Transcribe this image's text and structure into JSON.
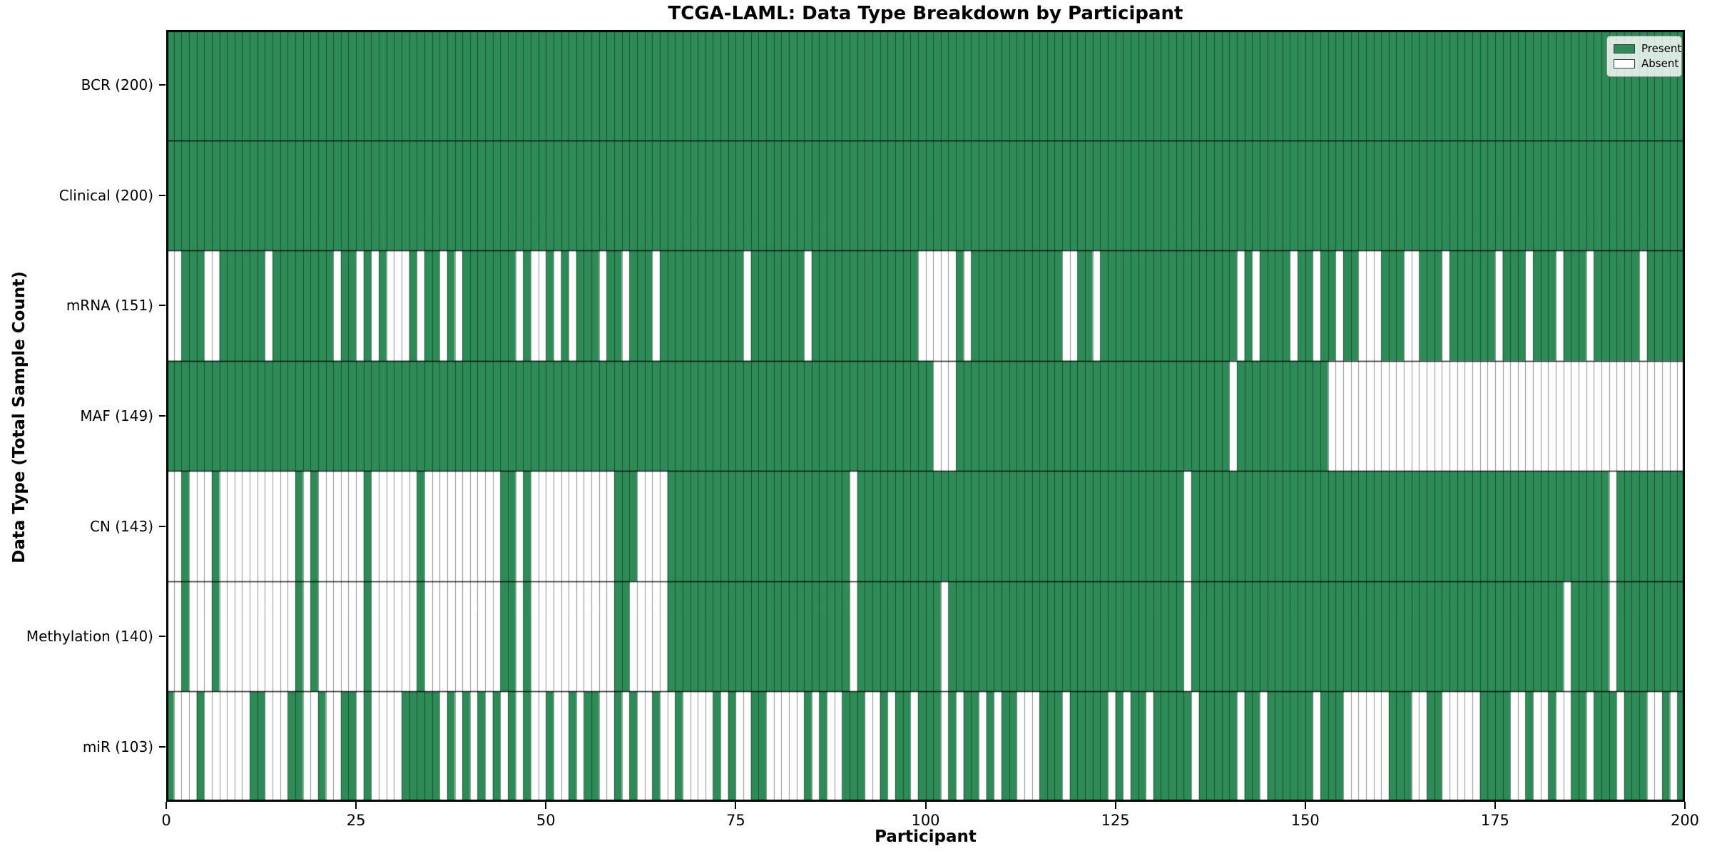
{
  "title": "TCGA-LAML: Data Type Breakdown by Participant",
  "axes": {
    "xlabel": "Participant",
    "ylabel": "Data Type (Total Sample Count)"
  },
  "legend": {
    "position": "upper right",
    "items": [
      {
        "label": "Present",
        "color": "#2e8b57"
      },
      {
        "label": "Absent",
        "color": "#ffffff"
      }
    ]
  },
  "chart_data": {
    "type": "heatmap",
    "title": "TCGA-LAML: Data Type Breakdown by Participant",
    "xlabel": "Participant",
    "ylabel": "Data Type (Total Sample Count)",
    "x_ticks": [
      0,
      25,
      50,
      75,
      100,
      125,
      150,
      175,
      200
    ],
    "xlim": [
      0,
      200
    ],
    "n_participants": 200,
    "present_color": "#2e8b57",
    "absent_color": "#ffffff",
    "grid_color": "rgba(0,0,0,0.42)",
    "row_sep_color": "rgba(0,0,0,0.85)",
    "frame_color": "#000000",
    "legend_position": "upper right",
    "rows": [
      {
        "name": "BCR",
        "label": "BCR (200)",
        "present_count": 200,
        "absent": []
      },
      {
        "name": "Clinical",
        "label": "Clinical (200)",
        "present_count": 200,
        "absent": []
      },
      {
        "name": "mRNA",
        "label": "mRNA (151)",
        "present_count": 151,
        "absent": [
          0,
          1,
          5,
          6,
          13,
          22,
          25,
          27,
          29,
          30,
          31,
          33,
          36,
          38,
          46,
          48,
          49,
          51,
          53,
          57,
          60,
          64,
          76,
          84,
          99,
          100,
          101,
          102,
          103,
          105,
          118,
          119,
          122,
          141,
          143,
          148,
          151,
          154,
          157,
          158,
          159,
          163,
          164,
          168,
          175,
          179,
          183,
          187,
          194
        ]
      },
      {
        "name": "MAF",
        "label": "MAF (149)",
        "present_count": 149,
        "absent": [
          101,
          102,
          103,
          140,
          153,
          154,
          155,
          156,
          157,
          158,
          159,
          160,
          161,
          162,
          163,
          164,
          165,
          166,
          167,
          168,
          169,
          170,
          171,
          172,
          173,
          174,
          175,
          176,
          177,
          178,
          179,
          180,
          181,
          182,
          183,
          184,
          185,
          186,
          187,
          188,
          189,
          190,
          191,
          192,
          193,
          194,
          195,
          196,
          197,
          198,
          199
        ]
      },
      {
        "name": "CN",
        "label": "CN (143)",
        "present_count": 143,
        "absent": [
          0,
          1,
          3,
          4,
          5,
          7,
          8,
          9,
          10,
          11,
          12,
          13,
          14,
          15,
          16,
          18,
          20,
          21,
          22,
          23,
          24,
          25,
          27,
          28,
          29,
          30,
          31,
          32,
          34,
          35,
          36,
          37,
          38,
          39,
          40,
          41,
          42,
          43,
          46,
          48,
          49,
          50,
          51,
          52,
          53,
          54,
          55,
          56,
          57,
          58,
          62,
          63,
          64,
          65,
          90,
          134,
          190
        ]
      },
      {
        "name": "Methylation",
        "label": "Methylation (140)",
        "present_count": 140,
        "absent": [
          0,
          1,
          3,
          4,
          5,
          7,
          8,
          9,
          10,
          11,
          12,
          13,
          14,
          15,
          16,
          18,
          20,
          21,
          22,
          23,
          24,
          25,
          27,
          28,
          29,
          30,
          31,
          32,
          34,
          35,
          36,
          37,
          38,
          39,
          40,
          41,
          42,
          43,
          46,
          48,
          49,
          50,
          51,
          52,
          53,
          54,
          55,
          56,
          57,
          58,
          61,
          62,
          63,
          64,
          65,
          90,
          102,
          134,
          184,
          190
        ]
      },
      {
        "name": "miR",
        "label": "miR (103)",
        "present_count": 103,
        "absent": [
          1,
          2,
          3,
          5,
          6,
          7,
          8,
          9,
          10,
          13,
          14,
          15,
          18,
          19,
          21,
          22,
          25,
          27,
          28,
          29,
          30,
          36,
          38,
          40,
          42,
          44,
          46,
          48,
          49,
          51,
          52,
          54,
          57,
          58,
          60,
          62,
          63,
          65,
          66,
          68,
          69,
          70,
          71,
          73,
          75,
          76,
          79,
          80,
          81,
          82,
          83,
          85,
          87,
          88,
          92,
          93,
          95,
          98,
          102,
          104,
          107,
          109,
          112,
          113,
          114,
          118,
          124,
          126,
          129,
          135,
          141,
          144,
          151,
          155,
          156,
          157,
          158,
          159,
          160,
          164,
          165,
          168,
          169,
          170,
          171,
          172,
          177,
          178,
          180,
          181,
          183,
          184,
          187,
          191,
          195,
          196,
          198
        ]
      }
    ]
  }
}
